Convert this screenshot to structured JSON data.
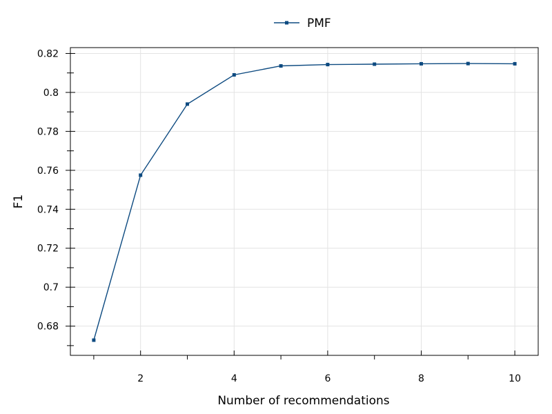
{
  "chart_data": {
    "type": "line",
    "title": "",
    "xlabel": "Number of recommendations",
    "ylabel": "F1",
    "xlim": [
      0.5,
      10.5
    ],
    "ylim": [
      0.665,
      0.823
    ],
    "x_ticks": [
      2,
      4,
      6,
      8,
      10
    ],
    "x_tick_labels": [
      "2",
      "4",
      "6",
      "8",
      "10"
    ],
    "x_minor_ticks": [
      1,
      3,
      5,
      7,
      9
    ],
    "y_ticks": [
      0.68,
      0.7,
      0.72,
      0.74,
      0.76,
      0.78,
      0.8,
      0.82
    ],
    "y_tick_labels": [
      "0.68",
      "0.7",
      "0.72",
      "0.74",
      "0.76",
      "0.78",
      "0.8",
      "0.82"
    ],
    "y_minor_ticks": [
      0.67,
      0.69,
      0.71,
      0.73,
      0.75,
      0.77,
      0.79,
      0.81
    ],
    "grid": true,
    "legend_position": "top-center",
    "x": [
      1,
      2,
      3,
      4,
      5,
      6,
      7,
      8,
      9,
      10
    ],
    "series": [
      {
        "name": "PMF",
        "color": "#0d4a80",
        "marker": "square",
        "values": [
          0.6728,
          0.7575,
          0.794,
          0.809,
          0.8136,
          0.8143,
          0.8145,
          0.8147,
          0.8148,
          0.8147
        ]
      }
    ]
  }
}
